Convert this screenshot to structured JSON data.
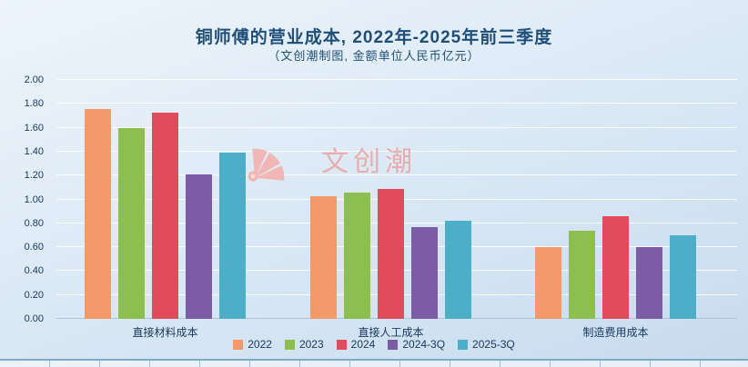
{
  "chart_data": {
    "type": "bar",
    "title": "铜师傅的营业成本, 2022年-2025年前三季度",
    "subtitle": "（文创潮制图, 金额单位人民币亿元）",
    "categories": [
      "直接材料成本",
      "直接人工成本",
      "制造费用成本"
    ],
    "series": [
      {
        "name": "2022",
        "color": "#F49A6A",
        "values": [
          1.76,
          1.03,
          0.6
        ]
      },
      {
        "name": "2023",
        "color": "#8CBF4F",
        "values": [
          1.6,
          1.06,
          0.74
        ]
      },
      {
        "name": "2024",
        "color": "#E04C5C",
        "values": [
          1.73,
          1.09,
          0.86
        ]
      },
      {
        "name": "2024-3Q",
        "color": "#7D5CA6",
        "values": [
          1.21,
          0.77,
          0.6
        ]
      },
      {
        "name": "2025-3Q",
        "color": "#4EAEC8",
        "values": [
          1.39,
          0.82,
          0.7
        ]
      }
    ],
    "ylim": [
      0,
      2
    ],
    "ytick_step": 0.2,
    "ytick_labels": [
      "0.00",
      "0.20",
      "0.40",
      "0.60",
      "0.80",
      "1.00",
      "1.20",
      "1.40",
      "1.60",
      "1.80",
      "2.00"
    ],
    "grid": true,
    "legend_position": "bottom"
  },
  "watermark": {
    "text": "文创潮"
  }
}
